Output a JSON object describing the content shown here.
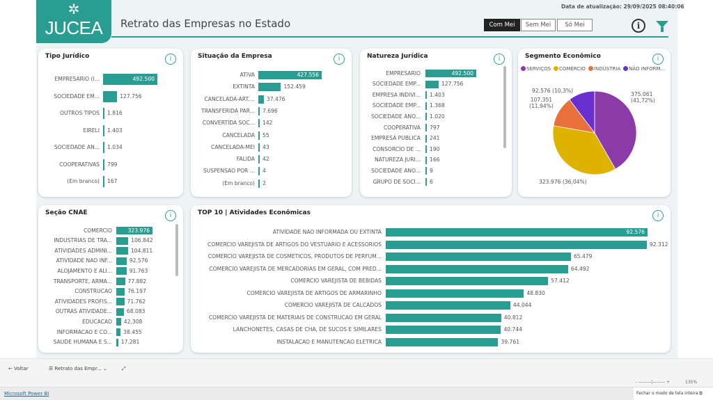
{
  "header": {
    "logo_text": "JUCEA",
    "title": "Retrato das Empresas no Estado",
    "updated": "Data de atualização: 29/09/2025 08:40:06",
    "segments": [
      {
        "label": "Com Mei",
        "active": true
      },
      {
        "label": "Sem Mei",
        "active": false
      },
      {
        "label": "Só Mei",
        "active": false
      }
    ],
    "info_icon": "info-circle-icon",
    "filter_icon": "filter-icon"
  },
  "colors": {
    "accent": "#2a9d93",
    "servicos": "#8b3aa8",
    "comercio": "#ddb300",
    "industria": "#e8703a",
    "nao_informado": "#6a2fcf"
  },
  "charts": {
    "tipo": {
      "title": "Tipo Jurídico",
      "categories": [
        "EMPRESARIO (I...",
        "SOCIEDADE EM...",
        "OUTROS TIPOS",
        "EIRELI",
        "SOCIEDADE AN...",
        "COOPERATIVAS",
        "(Em branco)"
      ],
      "values": [
        492500,
        127756,
        1816,
        1403,
        1034,
        799,
        167
      ],
      "labels": [
        "492.500",
        "127.756",
        "1.816",
        "1.403",
        "1.034",
        "799",
        "167"
      ]
    },
    "situacao": {
      "title": "Situação da Empresa",
      "categories": [
        "ATIVA",
        "EXTINTA",
        "CANCELADA-ART....",
        "TRANSFERIDA PAR...",
        "CONVERTIDA SOC...",
        "CANCELADA",
        "CANCELADA-MEI",
        "FALIDA",
        "SUSPENSAO POR ...",
        "(Em branco)"
      ],
      "values": [
        427556,
        152459,
        37476,
        7696,
        142,
        55,
        43,
        42,
        4,
        2
      ],
      "labels": [
        "427.556",
        "152.459",
        "37.476",
        "7.696",
        "142",
        "55",
        "43",
        "42",
        "4",
        "2"
      ]
    },
    "natureza": {
      "title": "Natureza Jurídica",
      "categories": [
        "EMPRESARIO",
        "SOCIEDADE EMP...",
        "EMPRESA INDIVI...",
        "SOCIEDADE EMP...",
        "SOCIEDADE ANO...",
        "COOPERATIVA",
        "EMPRESA PUBLICA",
        "CONSORCIO DE ...",
        "NATUREZA JURI...",
        "SOCIEDADE ANO...",
        "GRUPO DE SOCI..."
      ],
      "values": [
        492500,
        127756,
        1403,
        1368,
        1020,
        797,
        241,
        190,
        166,
        9,
        6
      ],
      "labels": [
        "492.500",
        "127.756",
        "1.403",
        "1.368",
        "1.020",
        "797",
        "241",
        "190",
        "166",
        "9",
        "6"
      ]
    },
    "cnae": {
      "title": "Seção CNAE",
      "categories": [
        "COMERCIO",
        "INDUSTRIAS DE TRA...",
        "ATIVIDADES ADMINI...",
        "ATIVIDADE NAO INF...",
        "ALOJAMENTO E ALI...",
        "TRANSPORTE, ARMA...",
        "CONSTRUCAO",
        "ATIVIDADES PROFIS...",
        "OUTRAS ATIVIDADE...",
        "EDUCACAO",
        "INFORMACAO E CO...",
        "SAUDE HUMANA E S..."
      ],
      "values": [
        323976,
        106842,
        104811,
        92576,
        91763,
        77882,
        76197,
        71762,
        68083,
        42308,
        38455,
        17281
      ],
      "labels": [
        "323.976",
        "106.842",
        "104.811",
        "92.576",
        "91.763",
        "77.882",
        "76.197",
        "71.762",
        "68.083",
        "42.308",
        "38.455",
        "17.281"
      ]
    },
    "top10": {
      "title": "TOP 10 | Atividades Econômicas",
      "categories": [
        "ATIVIDADE NAO INFORMADA OU EXTINTA",
        "COMERCIO VAREJISTA DE ARTIGOS DO VESTUARIO E ACESSORIOS",
        "COMERCIO VAREJISTA DE COSMETICOS, PRODUTOS DE PERFUM...",
        "COMERCIO VAREJISTA DE MERCADORIAS EM GERAL, COM PRED...",
        "COMERCIO VAREJISTA DE BEBIDAS",
        "COMERCIO VAREJISTA DE ARTIGOS DE ARMARINHO",
        "COMERCIO VAREJISTA DE CALCADOS",
        "COMERCIO VAREJISTA DE MATERIAIS DE CONSTRUCAO EM GERAL",
        "LANCHONETES, CASAS DE CHA, DE SUCOS E SIMILARES",
        "INSTALACAO E MANUTENCAO ELETRICA"
      ],
      "values": [
        92576,
        92312,
        65479,
        64492,
        57412,
        48830,
        44044,
        40812,
        40744,
        39761
      ],
      "labels": [
        "92.576",
        "92.312",
        "65.479",
        "64.492",
        "57.412",
        "48.830",
        "44.044",
        "40.812",
        "40.744",
        "39.761"
      ]
    }
  },
  "chart_data": {
    "type": "pie",
    "title": "Segmento Econômico",
    "legend": [
      "SERVIÇOS",
      "COMÉRCIO",
      "INDÚSTRIA",
      "NÃO INFORM..."
    ],
    "values": [
      375061,
      323976,
      107351,
      92576
    ],
    "labels": [
      "375.061 (41,72%)",
      "323.976 (36,04%)",
      "107.351 (11,94%)",
      "92.576 (10,3%)"
    ],
    "label_lines": [
      [
        "375.061",
        "(41,72%)"
      ],
      [
        "323.976 (36,04%)"
      ],
      [
        "107.351",
        "(11,94%)"
      ],
      [
        "92.576 (10,3%)"
      ]
    ],
    "legend_placement": "top"
  },
  "nav": {
    "back": "Voltar",
    "page": "Retrato das Empr...",
    "zoom": "135%"
  },
  "footer": {
    "brand": "Microsoft Power BI",
    "exit_fullscreen": "Fechar o modo de tela inteira"
  }
}
